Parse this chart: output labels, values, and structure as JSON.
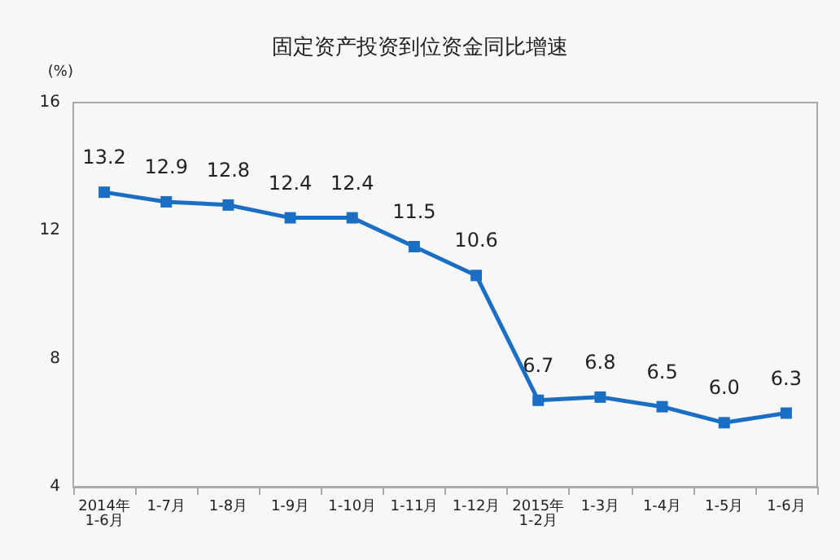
{
  "chart_data": {
    "type": "line",
    "title": "固定资产投资到位资金同比增速",
    "ylabel": "(%)",
    "categories": [
      "2014年\n1-6月",
      "1-7月",
      "1-8月",
      "1-9月",
      "1-10月",
      "1-11月",
      "1-12月",
      "2015年\n1-2月",
      "1-3月",
      "1-4月",
      "1-5月",
      "1-6月"
    ],
    "series": [
      {
        "color": "#1a6fc4",
        "values": [
          13.2,
          12.9,
          12.8,
          12.4,
          12.4,
          11.5,
          10.6,
          6.7,
          6.8,
          6.5,
          6.0,
          6.3
        ]
      }
    ],
    "ylim": [
      4,
      16
    ],
    "yticks": [
      4,
      8,
      12,
      16
    ],
    "grid": false,
    "marker": "square",
    "line_style": "solid",
    "value_labels": [
      "13.2",
      "12.9",
      "12.8",
      "12.4",
      "12.4",
      "11.5",
      "10.6",
      "6.7",
      "6.8",
      "6.5",
      "6.0",
      "6.3"
    ]
  }
}
